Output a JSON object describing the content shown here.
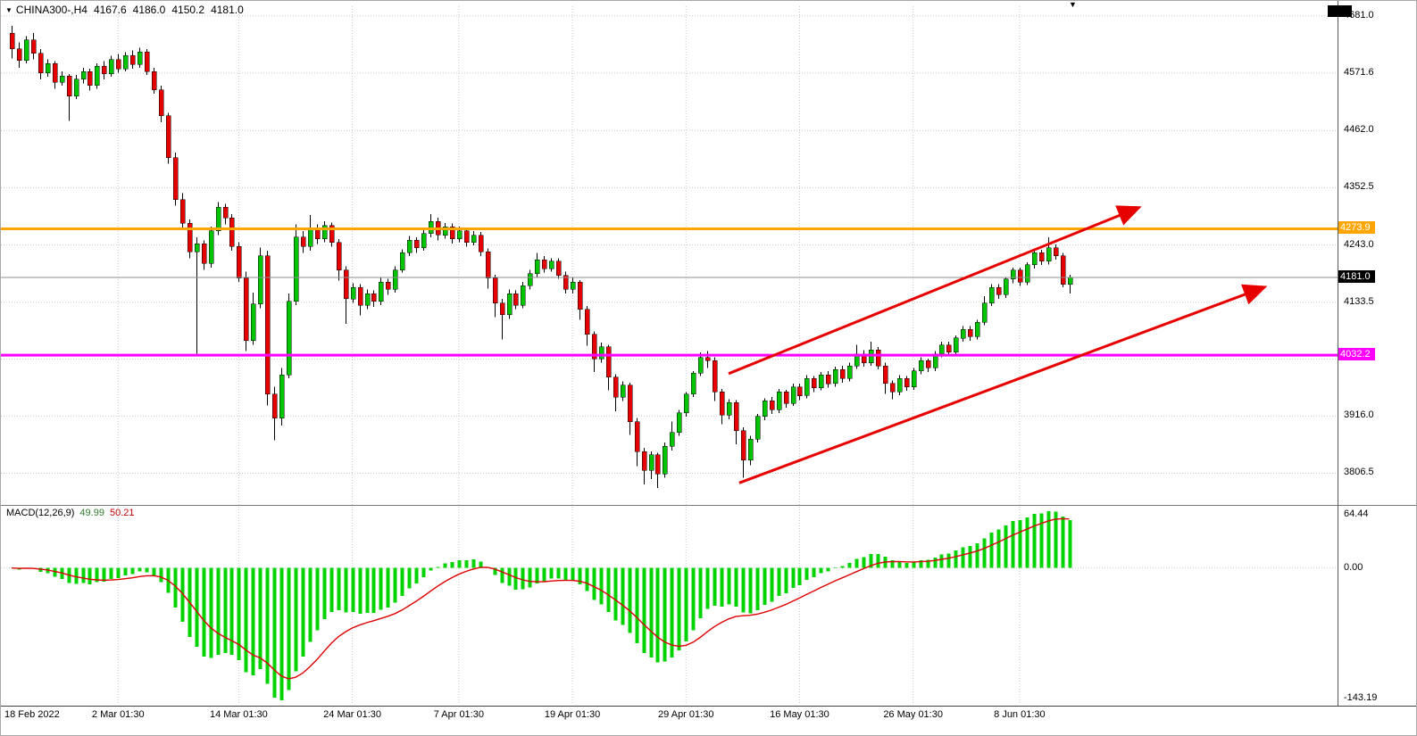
{
  "header": {
    "symbol_period": "CHINA300-,H4",
    "open": "4167.6",
    "high": "4186.0",
    "low": "4150.2",
    "close": "4181.0"
  },
  "icons": {
    "collapse": "▼",
    "shift_marker": "▼"
  },
  "macd_panel": {
    "title": "MACD(12,26,9)",
    "main_value": "49.99",
    "signal_value": "50.21",
    "axis": {
      "max_label": "64.44",
      "zero_label": "0.00",
      "min_label": "-143.19"
    }
  },
  "price_axis": {
    "ticks": [
      {
        "value": 4681.0,
        "label": "4681.0"
      },
      {
        "value": 4571.6,
        "label": "4571.6"
      },
      {
        "value": 4462.0,
        "label": "4462.0"
      },
      {
        "value": 4352.5,
        "label": "4352.5"
      },
      {
        "value": 4243.0,
        "label": "4243.0"
      },
      {
        "value": 4133.5,
        "label": "4133.5"
      },
      {
        "value": 4024.7,
        "label": ""
      },
      {
        "value": 3916.0,
        "label": "3916.0"
      },
      {
        "value": 3806.5,
        "label": "3806.5"
      }
    ]
  },
  "time_axis": {
    "labels": [
      {
        "text": "18 Feb 2022",
        "bar": 0
      },
      {
        "text": "2 Mar 01:30",
        "bar": 15
      },
      {
        "text": "14 Mar 01:30",
        "bar": 32
      },
      {
        "text": "24 Mar 01:30",
        "bar": 48
      },
      {
        "text": "7 Apr 01:30",
        "bar": 63
      },
      {
        "text": "19 Apr 01:30",
        "bar": 79
      },
      {
        "text": "29 Apr 01:30",
        "bar": 95
      },
      {
        "text": "16 May 01:30",
        "bar": 111
      },
      {
        "text": "26 May 01:30",
        "bar": 127
      },
      {
        "text": "8 Jun 01:30",
        "bar": 142
      }
    ]
  },
  "price_lines": [
    {
      "id": "resistance-line",
      "label": "4273.9",
      "value": 4273.9,
      "line_color": "#ffa500",
      "badge_color": "#ffa500",
      "thickness": 3
    },
    {
      "id": "support-line",
      "label": "4032.2",
      "value": 4032.2,
      "line_color": "#ff00ff",
      "badge_color": "#ff00ff",
      "thickness": 3
    },
    {
      "id": "current-price-line",
      "label": "4181.0",
      "value": 4181.0,
      "line_color": "#8f8f8f",
      "badge_color": "#000000",
      "thickness": 1
    }
  ],
  "trend_arrows": [
    {
      "from": {
        "bar": 101,
        "price": 3997
      },
      "to": {
        "bar": 158.5,
        "price": 4313
      }
    },
    {
      "from": {
        "bar": 102.5,
        "price": 3788
      },
      "to": {
        "bar": 176.2,
        "price": 4161
      }
    }
  ],
  "colors": {
    "up": "#00c400",
    "down": "#e60000",
    "wick": "#000000",
    "grid": "#c9c9c9",
    "macd_hist": "#00d300",
    "macd_signal": "#dd0000",
    "arrow": "#e60000"
  },
  "chart_data": {
    "type": "candlestick",
    "symbol": "CHINA300-",
    "timeframe": "H4",
    "title": "CHINA300-,H4 4167.6 4186.0 4150.2 4181.0",
    "y_axis_range": [
      3751,
      4699.5
    ],
    "macd_settings": {
      "fast": 12,
      "slow": 26,
      "signal": 9,
      "current_macd": 49.99,
      "current_signal": 50.21,
      "panel_max": 64.44,
      "panel_min": -143.19
    },
    "candles": [
      [
        4648,
        4662,
        4600,
        4618
      ],
      [
        4618,
        4630,
        4582,
        4596
      ],
      [
        4596,
        4642,
        4590,
        4635
      ],
      [
        4635,
        4648,
        4598,
        4610
      ],
      [
        4610,
        4618,
        4560,
        4572
      ],
      [
        4572,
        4598,
        4565,
        4590
      ],
      [
        4590,
        4595,
        4542,
        4554
      ],
      [
        4554,
        4575,
        4548,
        4566
      ],
      [
        4566,
        4570,
        4480,
        4528
      ],
      [
        4528,
        4568,
        4522,
        4560
      ],
      [
        4560,
        4582,
        4552,
        4575
      ],
      [
        4575,
        4580,
        4538,
        4548
      ],
      [
        4548,
        4590,
        4542,
        4585
      ],
      [
        4585,
        4595,
        4560,
        4570
      ],
      [
        4570,
        4605,
        4565,
        4598
      ],
      [
        4598,
        4608,
        4572,
        4580
      ],
      [
        4580,
        4612,
        4575,
        4605
      ],
      [
        4605,
        4615,
        4580,
        4588
      ],
      [
        4588,
        4620,
        4582,
        4612
      ],
      [
        4612,
        4618,
        4568,
        4575
      ],
      [
        4575,
        4582,
        4532,
        4540
      ],
      [
        4540,
        4548,
        4478,
        4490
      ],
      [
        4490,
        4496,
        4398,
        4410
      ],
      [
        4410,
        4420,
        4318,
        4330
      ],
      [
        4330,
        4342,
        4272,
        4285
      ],
      [
        4285,
        4292,
        4218,
        4230
      ],
      [
        4230,
        4258,
        4035,
        4245
      ],
      [
        4245,
        4252,
        4195,
        4208
      ],
      [
        4208,
        4278,
        4200,
        4270
      ],
      [
        4270,
        4325,
        4262,
        4315
      ],
      [
        4315,
        4322,
        4282,
        4295
      ],
      [
        4295,
        4302,
        4232,
        4240
      ],
      [
        4240,
        4248,
        4172,
        4180
      ],
      [
        4180,
        4192,
        4040,
        4060
      ],
      [
        4060,
        4152,
        4052,
        4130
      ],
      [
        4130,
        4238,
        4122,
        4222
      ],
      [
        4222,
        4232,
        3936,
        3958
      ],
      [
        3958,
        3972,
        3870,
        3912
      ],
      [
        3912,
        4008,
        3898,
        3995
      ],
      [
        3995,
        4150,
        3988,
        4135
      ],
      [
        4135,
        4282,
        4128,
        4258
      ],
      [
        4258,
        4270,
        4228,
        4240
      ],
      [
        4240,
        4300,
        4232,
        4272
      ],
      [
        4272,
        4282,
        4245,
        4255
      ],
      [
        4255,
        4288,
        4248,
        4280
      ],
      [
        4280,
        4286,
        4240,
        4248
      ],
      [
        4248,
        4254,
        4175,
        4195
      ],
      [
        4195,
        4202,
        4092,
        4140
      ],
      [
        4140,
        4170,
        4132,
        4162
      ],
      [
        4162,
        4168,
        4108,
        4128
      ],
      [
        4128,
        4158,
        4120,
        4150
      ],
      [
        4150,
        4156,
        4125,
        4135
      ],
      [
        4135,
        4180,
        4128,
        4172
      ],
      [
        4172,
        4178,
        4148,
        4158
      ],
      [
        4158,
        4202,
        4152,
        4195
      ],
      [
        4195,
        4235,
        4190,
        4228
      ],
      [
        4228,
        4260,
        4222,
        4252
      ],
      [
        4252,
        4258,
        4228,
        4238
      ],
      [
        4238,
        4272,
        4232,
        4265
      ],
      [
        4265,
        4302,
        4258,
        4288
      ],
      [
        4288,
        4295,
        4252,
        4262
      ],
      [
        4262,
        4285,
        4255,
        4278
      ],
      [
        4278,
        4284,
        4246,
        4255
      ],
      [
        4255,
        4278,
        4248,
        4270
      ],
      [
        4270,
        4276,
        4240,
        4248
      ],
      [
        4248,
        4270,
        4242,
        4262
      ],
      [
        4262,
        4268,
        4222,
        4230
      ],
      [
        4230,
        4236,
        4160,
        4180
      ],
      [
        4180,
        4186,
        4105,
        4132
      ],
      [
        4132,
        4140,
        4062,
        4110
      ],
      [
        4110,
        4158,
        4102,
        4150
      ],
      [
        4150,
        4156,
        4120,
        4128
      ],
      [
        4128,
        4172,
        4122,
        4165
      ],
      [
        4165,
        4195,
        4158,
        4188
      ],
      [
        4188,
        4228,
        4182,
        4215
      ],
      [
        4215,
        4222,
        4190,
        4198
      ],
      [
        4198,
        4218,
        4192,
        4212
      ],
      [
        4212,
        4218,
        4178,
        4185
      ],
      [
        4185,
        4192,
        4150,
        4158
      ],
      [
        4158,
        4180,
        4150,
        4172
      ],
      [
        4172,
        4176,
        4100,
        4120
      ],
      [
        4120,
        4126,
        4050,
        4072
      ],
      [
        4072,
        4078,
        4000,
        4025
      ],
      [
        4025,
        4056,
        4018,
        4048
      ],
      [
        4048,
        4052,
        3965,
        3990
      ],
      [
        3990,
        3996,
        3925,
        3952
      ],
      [
        3952,
        3982,
        3945,
        3975
      ],
      [
        3975,
        3980,
        3880,
        3905
      ],
      [
        3905,
        3912,
        3820,
        3848
      ],
      [
        3848,
        3855,
        3785,
        3812
      ],
      [
        3812,
        3848,
        3795,
        3842
      ],
      [
        3842,
        3846,
        3778,
        3805
      ],
      [
        3805,
        3865,
        3798,
        3858
      ],
      [
        3858,
        3905,
        3850,
        3885
      ],
      [
        3885,
        3928,
        3878,
        3922
      ],
      [
        3922,
        3962,
        3915,
        3958
      ],
      [
        3958,
        4002,
        3952,
        3998
      ],
      [
        3998,
        4038,
        3992,
        4028
      ],
      [
        4028,
        4040,
        4008,
        4022
      ],
      [
        4022,
        4028,
        3945,
        3962
      ],
      [
        3962,
        3968,
        3900,
        3918
      ],
      [
        3918,
        3948,
        3910,
        3942
      ],
      [
        3942,
        3946,
        3862,
        3888
      ],
      [
        3888,
        3894,
        3798,
        3832
      ],
      [
        3832,
        3878,
        3822,
        3872
      ],
      [
        3872,
        3920,
        3865,
        3915
      ],
      [
        3915,
        3950,
        3908,
        3945
      ],
      [
        3945,
        3952,
        3920,
        3928
      ],
      [
        3928,
        3968,
        3922,
        3962
      ],
      [
        3962,
        3966,
        3932,
        3940
      ],
      [
        3940,
        3978,
        3935,
        3972
      ],
      [
        3972,
        3978,
        3946,
        3955
      ],
      [
        3955,
        3994,
        3950,
        3988
      ],
      [
        3988,
        3992,
        3962,
        3970
      ],
      [
        3970,
        4000,
        3965,
        3995
      ],
      [
        3995,
        4002,
        3970,
        3978
      ],
      [
        3978,
        4010,
        3972,
        4005
      ],
      [
        4005,
        4012,
        3980,
        3988
      ],
      [
        3988,
        4018,
        3982,
        4012
      ],
      [
        4012,
        4052,
        4006,
        4035
      ],
      [
        4035,
        4042,
        4010,
        4018
      ],
      [
        4018,
        4058,
        4012,
        4042
      ],
      [
        4042,
        4048,
        4005,
        4012
      ],
      [
        4012,
        4018,
        3958,
        3978
      ],
      [
        3978,
        3984,
        3948,
        3962
      ],
      [
        3962,
        3994,
        3956,
        3988
      ],
      [
        3988,
        3992,
        3964,
        3972
      ],
      [
        3972,
        4008,
        3966,
        4002
      ],
      [
        4002,
        4028,
        3996,
        4022
      ],
      [
        4022,
        4026,
        4000,
        4008
      ],
      [
        4008,
        4040,
        4002,
        4035
      ],
      [
        4035,
        4058,
        4028,
        4052
      ],
      [
        4052,
        4058,
        4030,
        4038
      ],
      [
        4038,
        4070,
        4032,
        4065
      ],
      [
        4065,
        4088,
        4058,
        4082
      ],
      [
        4082,
        4088,
        4060,
        4068
      ],
      [
        4068,
        4100,
        4062,
        4095
      ],
      [
        4095,
        4145,
        4090,
        4132
      ],
      [
        4132,
        4168,
        4126,
        4162
      ],
      [
        4162,
        4168,
        4140,
        4148
      ],
      [
        4148,
        4182,
        4142,
        4178
      ],
      [
        4178,
        4200,
        4170,
        4195
      ],
      [
        4195,
        4200,
        4165,
        4172
      ],
      [
        4172,
        4210,
        4166,
        4205
      ],
      [
        4205,
        4232,
        4198,
        4228
      ],
      [
        4228,
        4234,
        4205,
        4212
      ],
      [
        4212,
        4258,
        4206,
        4238
      ],
      [
        4238,
        4244,
        4215,
        4222
      ],
      [
        4222,
        4228,
        4162,
        4168
      ],
      [
        4167.6,
        4186.0,
        4150.2,
        4181.0
      ]
    ]
  }
}
